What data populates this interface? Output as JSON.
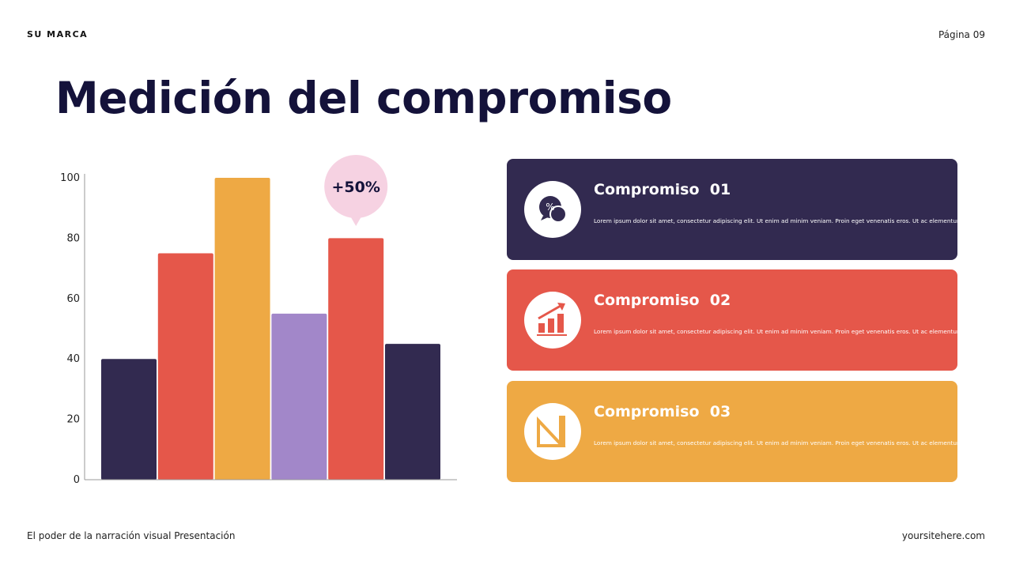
{
  "header": {
    "brand": "SU MARCA",
    "page": "Página 09"
  },
  "title": "Medición del compromiso",
  "chart_data": {
    "type": "bar",
    "categories": [
      null,
      null,
      null,
      null,
      null,
      null
    ],
    "values": [
      40,
      75,
      100,
      55,
      80,
      45
    ],
    "colors": [
      "#322a50",
      "#e5574a",
      "#eea944",
      "#a287c9",
      "#e5574a",
      "#322a50"
    ],
    "ylim": [
      0,
      100
    ],
    "yticks": [
      0,
      20,
      40,
      60,
      80,
      100
    ],
    "grid": false,
    "annotation": "+50%"
  },
  "cards": [
    {
      "title": "Compromiso  01",
      "text": "Lorem ipsum dolor sit amet, consectetur adipiscing elit. Ut enim ad minim veniam. Proin eget venenatis eros. Ut ac elementum.",
      "color": "#322a50"
    },
    {
      "title": "Compromiso  02",
      "text": "Lorem ipsum dolor sit amet, consectetur adipiscing elit. Ut enim ad minim veniam. Proin eget venenatis eros. Ut ac elementum.",
      "color": "#e5574a"
    },
    {
      "title": "Compromiso  03",
      "text": "Lorem ipsum dolor sit amet, consectetur adipiscing elit. Ut enim ad minim veniam. Proin eget venenatis eros. Ut ac elementum.",
      "color": "#eea944"
    }
  ],
  "footer": {
    "left": "El poder de la narración visual Presentación",
    "right": "yoursitehere.com"
  }
}
